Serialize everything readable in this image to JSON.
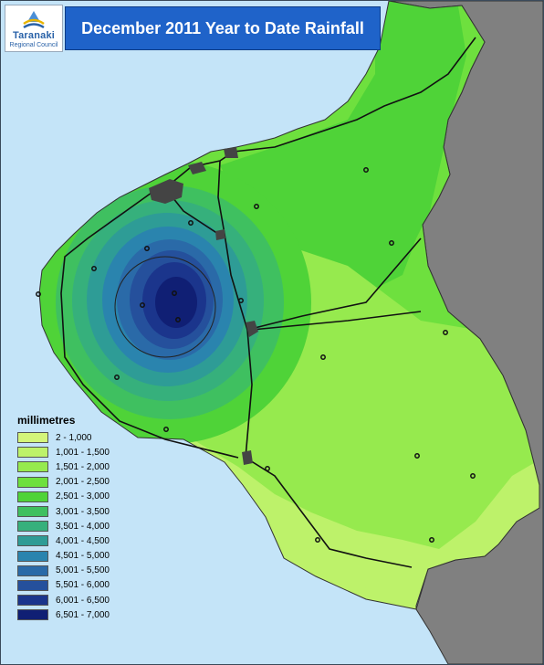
{
  "title": "December 2011 Year to Date Rainfall",
  "logo": {
    "name": "Taranaki",
    "subname": "Regional Council",
    "icon": "taranaki-logo-icon"
  },
  "legend": {
    "title": "millimetres",
    "classes": [
      {
        "label": "2 - 1,000",
        "color": "#d4f57a"
      },
      {
        "label": "1,001 - 1,500",
        "color": "#bdf26a"
      },
      {
        "label": "1,501 - 2,000",
        "color": "#96ea4e"
      },
      {
        "label": "2,001 - 2,500",
        "color": "#6ee03e"
      },
      {
        "label": "2,501 - 3,000",
        "color": "#4fd338"
      },
      {
        "label": "3,001 - 3,500",
        "color": "#3fc060"
      },
      {
        "label": "3,501 - 4,000",
        "color": "#36b07c"
      },
      {
        "label": "4,001 - 4,500",
        "color": "#2e9c96"
      },
      {
        "label": "4,501 - 5,000",
        "color": "#2a84ae"
      },
      {
        "label": "5,001 - 5,500",
        "color": "#2a6aa8"
      },
      {
        "label": "5,501 - 6,000",
        "color": "#25509c"
      },
      {
        "label": "6,001 - 6,500",
        "color": "#1b358c"
      },
      {
        "label": "6,501 - 7,000",
        "color": "#101f74"
      }
    ]
  },
  "colors": {
    "sea": "#c4e4f8",
    "land_outside": "#808080",
    "urban": "#444444",
    "road": "#111111",
    "title_bar": "#1f63c9"
  }
}
